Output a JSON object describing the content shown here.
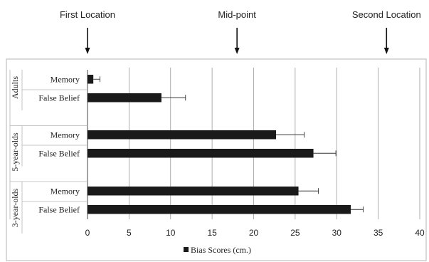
{
  "annotations": [
    {
      "text": "First Location",
      "x": 0
    },
    {
      "text": "Mid-point",
      "x": 18
    },
    {
      "text": "Second Location",
      "x": 36
    }
  ],
  "chart_data": {
    "type": "bar",
    "orientation": "horizontal",
    "title": "",
    "xlabel": "",
    "ylabel": "",
    "xlim": [
      0,
      40
    ],
    "x_ticks": [
      0,
      5,
      10,
      15,
      20,
      25,
      30,
      35,
      40
    ],
    "grid": "vertical",
    "legend": {
      "label": "Bias Scores (cm.)",
      "position": "bottom"
    },
    "groups": [
      {
        "name": "Adults",
        "bars": [
          {
            "label": "Memory",
            "value": 0.7,
            "error": 0.8
          },
          {
            "label": "False Belief",
            "value": 8.9,
            "error": 2.9
          }
        ]
      },
      {
        "name": "5-year-olds",
        "bars": [
          {
            "label": "Memory",
            "value": 22.7,
            "error": 3.4
          },
          {
            "label": "False Belief",
            "value": 27.2,
            "error": 2.7
          }
        ]
      },
      {
        "name": "3-year-olds",
        "bars": [
          {
            "label": "Memory",
            "value": 25.4,
            "error": 2.4
          },
          {
            "label": "False Belief",
            "value": 31.7,
            "error": 1.5
          }
        ]
      }
    ],
    "colors": {
      "bar": "#1a1a1a",
      "grid": "#9a9a9a",
      "frame": "#b5b5b5"
    }
  }
}
